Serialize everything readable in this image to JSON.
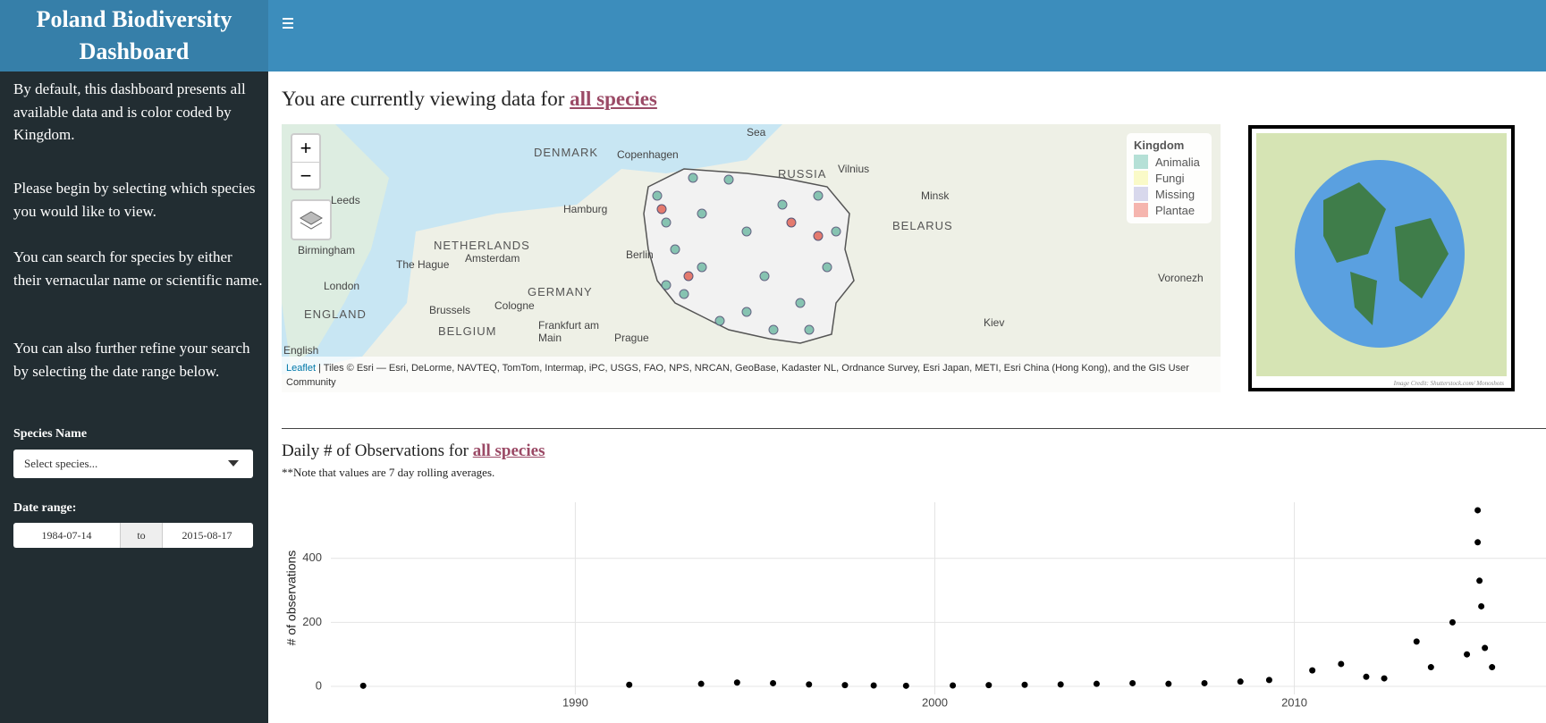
{
  "header": {
    "title": "Poland Biodiversity Dashboard"
  },
  "sidebar": {
    "paragraphs": [
      "By default, this dashboard presents all available data and is color coded by Kingdom.",
      "Please begin by selecting which species you would like to view.",
      "You can search for species by either their vernacular name or scientific name.",
      "You can also further refine your search by selecting the date range below."
    ],
    "species_label": "Species Name",
    "species_placeholder": "Select species...",
    "date_label": "Date range:",
    "date_start": "1984-07-14",
    "date_sep": "to",
    "date_end": "2015-08-17"
  },
  "main": {
    "heading": "You are currently viewing data for ",
    "heading_link": "all species"
  },
  "map": {
    "zoom_in": "+",
    "zoom_out": "−",
    "labels": [
      "Sea",
      "DENMARK",
      "Copenhagen",
      "RUSSIA",
      "Vilnius",
      "Minsk",
      "BELARUS",
      "Hamburg",
      "NETHERLANDS",
      "Amsterdam",
      "The Hague",
      "Birmingham",
      "Leeds",
      "London",
      "ENGLAND",
      "Berlin",
      "GERMANY",
      "Brussels",
      "BELGIUM",
      "Cologne",
      "Frankfurt am Main",
      "Prague",
      "Kiev",
      "Voronezh",
      "English"
    ],
    "legend": {
      "title": "Kingdom",
      "items": [
        {
          "name": "Animalia",
          "color": "#b5e0d6"
        },
        {
          "name": "Fungi",
          "color": "#fafac8"
        },
        {
          "name": "Missing",
          "color": "#d8d8ec"
        },
        {
          "name": "Plantae",
          "color": "#f5b5ae"
        }
      ]
    },
    "attribution_link": "Leaflet",
    "attribution": "| Tiles © Esri — Esri, DeLorme, NAVTEQ, TomTom, Intermap, iPC, USGS, FAO, NPS, NRCAN, GeoBase, Kadaster NL, Ordnance Survey, Esri Japan, METI, Esri China (Hong Kong), and the GIS User Community"
  },
  "image": {
    "credit": "Image Credit: Shutterstock.com/ Monoshots"
  },
  "chart_section": {
    "heading": "Daily # of Observations for ",
    "heading_link": "all species",
    "note": "**Note that values are 7 day rolling averages."
  },
  "chart_data": {
    "type": "scatter",
    "y_label": "# of observations",
    "color": "#000000",
    "grid": true,
    "x": [
      1984.1,
      1991.5,
      1993.5,
      1994.5,
      1995.5,
      1996.5,
      1997.5,
      1998.3,
      1999.2,
      2000.5,
      2001.5,
      2002.5,
      2003.5,
      2004.5,
      2005.5,
      2006.5,
      2007.5,
      2008.5,
      2009.3,
      2010.5,
      2011.3,
      2012.0,
      2012.5,
      2013.4,
      2013.8,
      2014.4,
      2014.8,
      2015.1,
      2015.1,
      2015.15,
      2015.2,
      2015.3,
      2015.5
    ],
    "values": [
      2,
      5,
      8,
      12,
      10,
      6,
      4,
      3,
      2,
      3,
      4,
      5,
      6,
      8,
      10,
      8,
      10,
      15,
      20,
      50,
      70,
      30,
      25,
      140,
      60,
      200,
      100,
      550,
      450,
      330,
      250,
      120,
      60
    ],
    "xlim": [
      1983.2,
      2017
    ],
    "ylim": [
      -25,
      575
    ],
    "xticks": [
      1990,
      2000,
      2010
    ],
    "yticks": [
      0,
      200,
      400
    ]
  }
}
